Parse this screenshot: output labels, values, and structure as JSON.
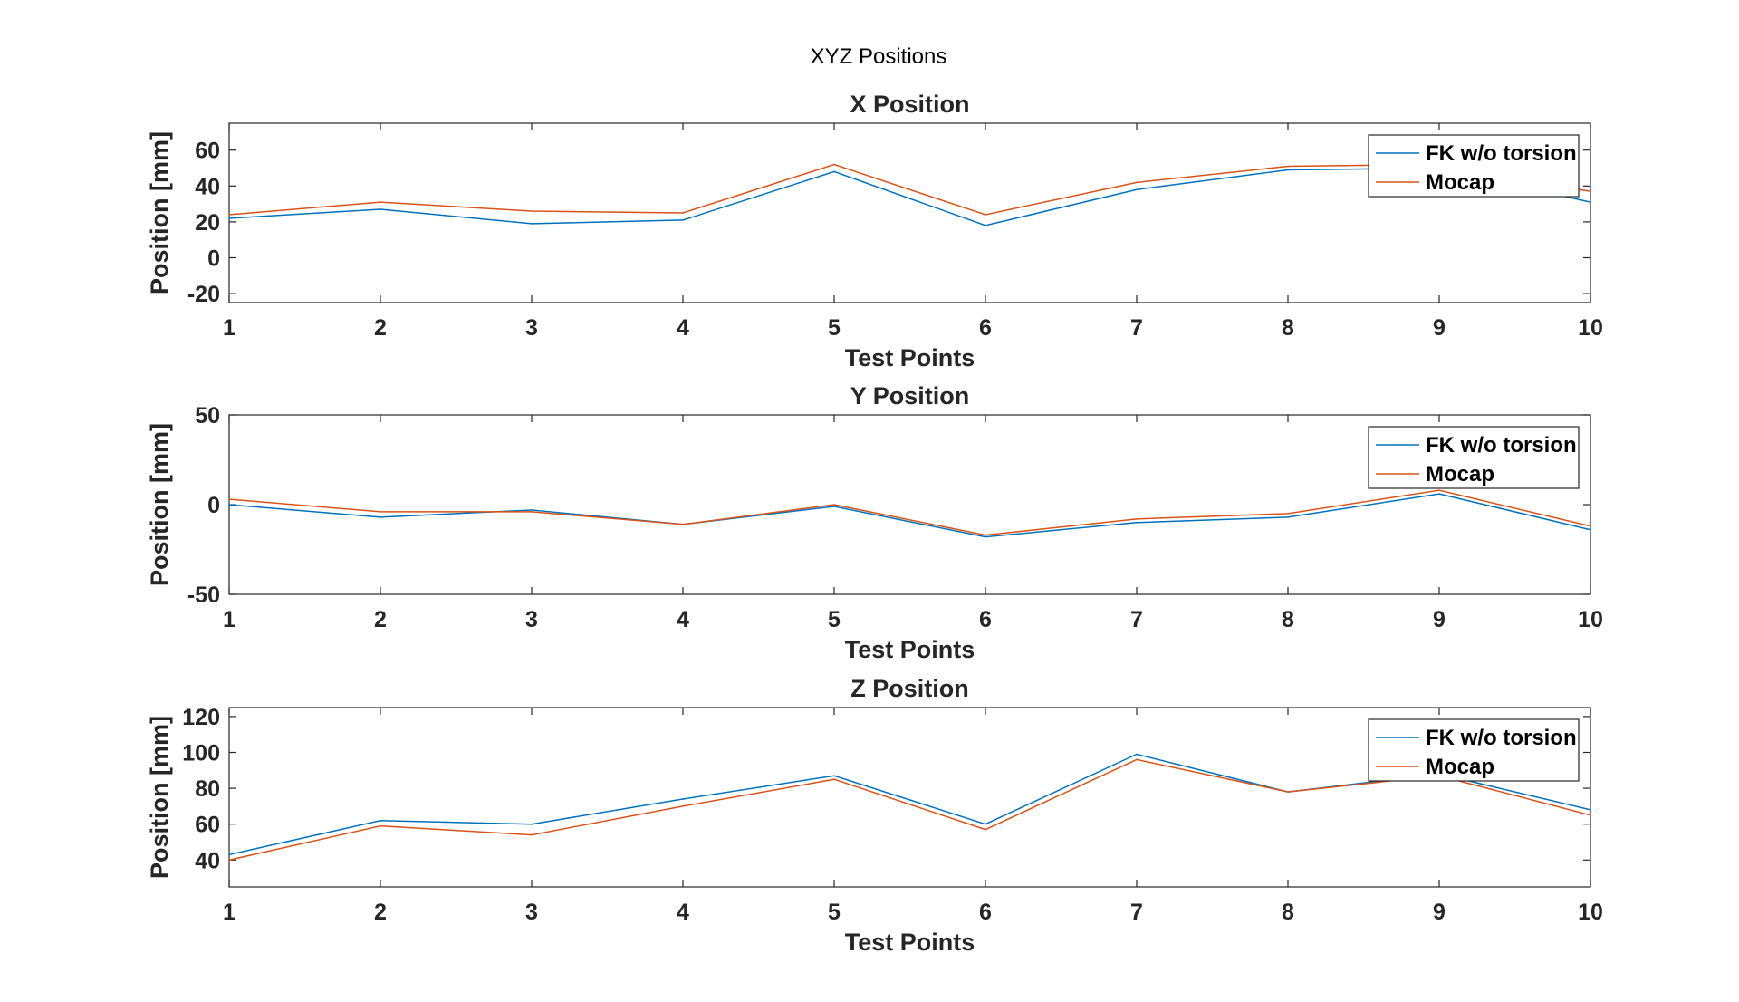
{
  "figure": {
    "title": "XYZ Positions"
  },
  "legend": {
    "placement": "top-right",
    "entries": [
      "FK w/o torsion",
      "Mocap"
    ]
  },
  "colors": {
    "series_fk": "#0072BD",
    "series_mocap": "#D95319"
  },
  "chart_data": [
    {
      "type": "line",
      "title": "X Position",
      "xlabel": "Test Points",
      "ylabel": "Position [mm]",
      "xlim": [
        1,
        10
      ],
      "ylim": [
        -25,
        75
      ],
      "xticks": [
        1,
        2,
        3,
        4,
        5,
        6,
        7,
        8,
        9,
        10
      ],
      "yticks": [
        -20,
        0,
        20,
        40,
        60
      ],
      "grid": true,
      "legend": "top-right",
      "x": [
        1,
        2,
        3,
        4,
        5,
        6,
        7,
        8,
        9,
        10
      ],
      "series": [
        {
          "name": "FK w/o torsion",
          "values": [
            22,
            27,
            19,
            21,
            48,
            18,
            38,
            49,
            50,
            31
          ]
        },
        {
          "name": "Mocap",
          "values": [
            24,
            31,
            26,
            25,
            52,
            24,
            42,
            51,
            52,
            37
          ]
        }
      ]
    },
    {
      "type": "line",
      "title": "Y Position",
      "xlabel": "Test Points",
      "ylabel": "Position [mm]",
      "xlim": [
        1,
        10
      ],
      "ylim": [
        -50,
        50
      ],
      "xticks": [
        1,
        2,
        3,
        4,
        5,
        6,
        7,
        8,
        9,
        10
      ],
      "yticks": [
        -50,
        0,
        50
      ],
      "grid": true,
      "legend": "top-right",
      "x": [
        1,
        2,
        3,
        4,
        5,
        6,
        7,
        8,
        9,
        10
      ],
      "series": [
        {
          "name": "FK w/o torsion",
          "values": [
            0,
            -7,
            -3,
            -11,
            -1,
            -18,
            -10,
            -7,
            6,
            -14
          ]
        },
        {
          "name": "Mocap",
          "values": [
            3,
            -4,
            -4,
            -11,
            0,
            -17,
            -8,
            -5,
            8,
            -12
          ]
        }
      ]
    },
    {
      "type": "line",
      "title": "Z Position",
      "xlabel": "Test Points",
      "ylabel": "Position [mm]",
      "xlim": [
        1,
        10
      ],
      "ylim": [
        25,
        125
      ],
      "xticks": [
        1,
        2,
        3,
        4,
        5,
        6,
        7,
        8,
        9,
        10
      ],
      "yticks": [
        40,
        60,
        80,
        100,
        120
      ],
      "grid": true,
      "legend": "top-right",
      "x": [
        1,
        2,
        3,
        4,
        5,
        6,
        7,
        8,
        9,
        10
      ],
      "series": [
        {
          "name": "FK w/o torsion",
          "values": [
            43,
            62,
            60,
            74,
            87,
            60,
            99,
            78,
            88,
            68
          ]
        },
        {
          "name": "Mocap",
          "values": [
            40,
            59,
            54,
            70,
            85,
            57,
            96,
            78,
            87,
            65
          ]
        }
      ]
    }
  ]
}
